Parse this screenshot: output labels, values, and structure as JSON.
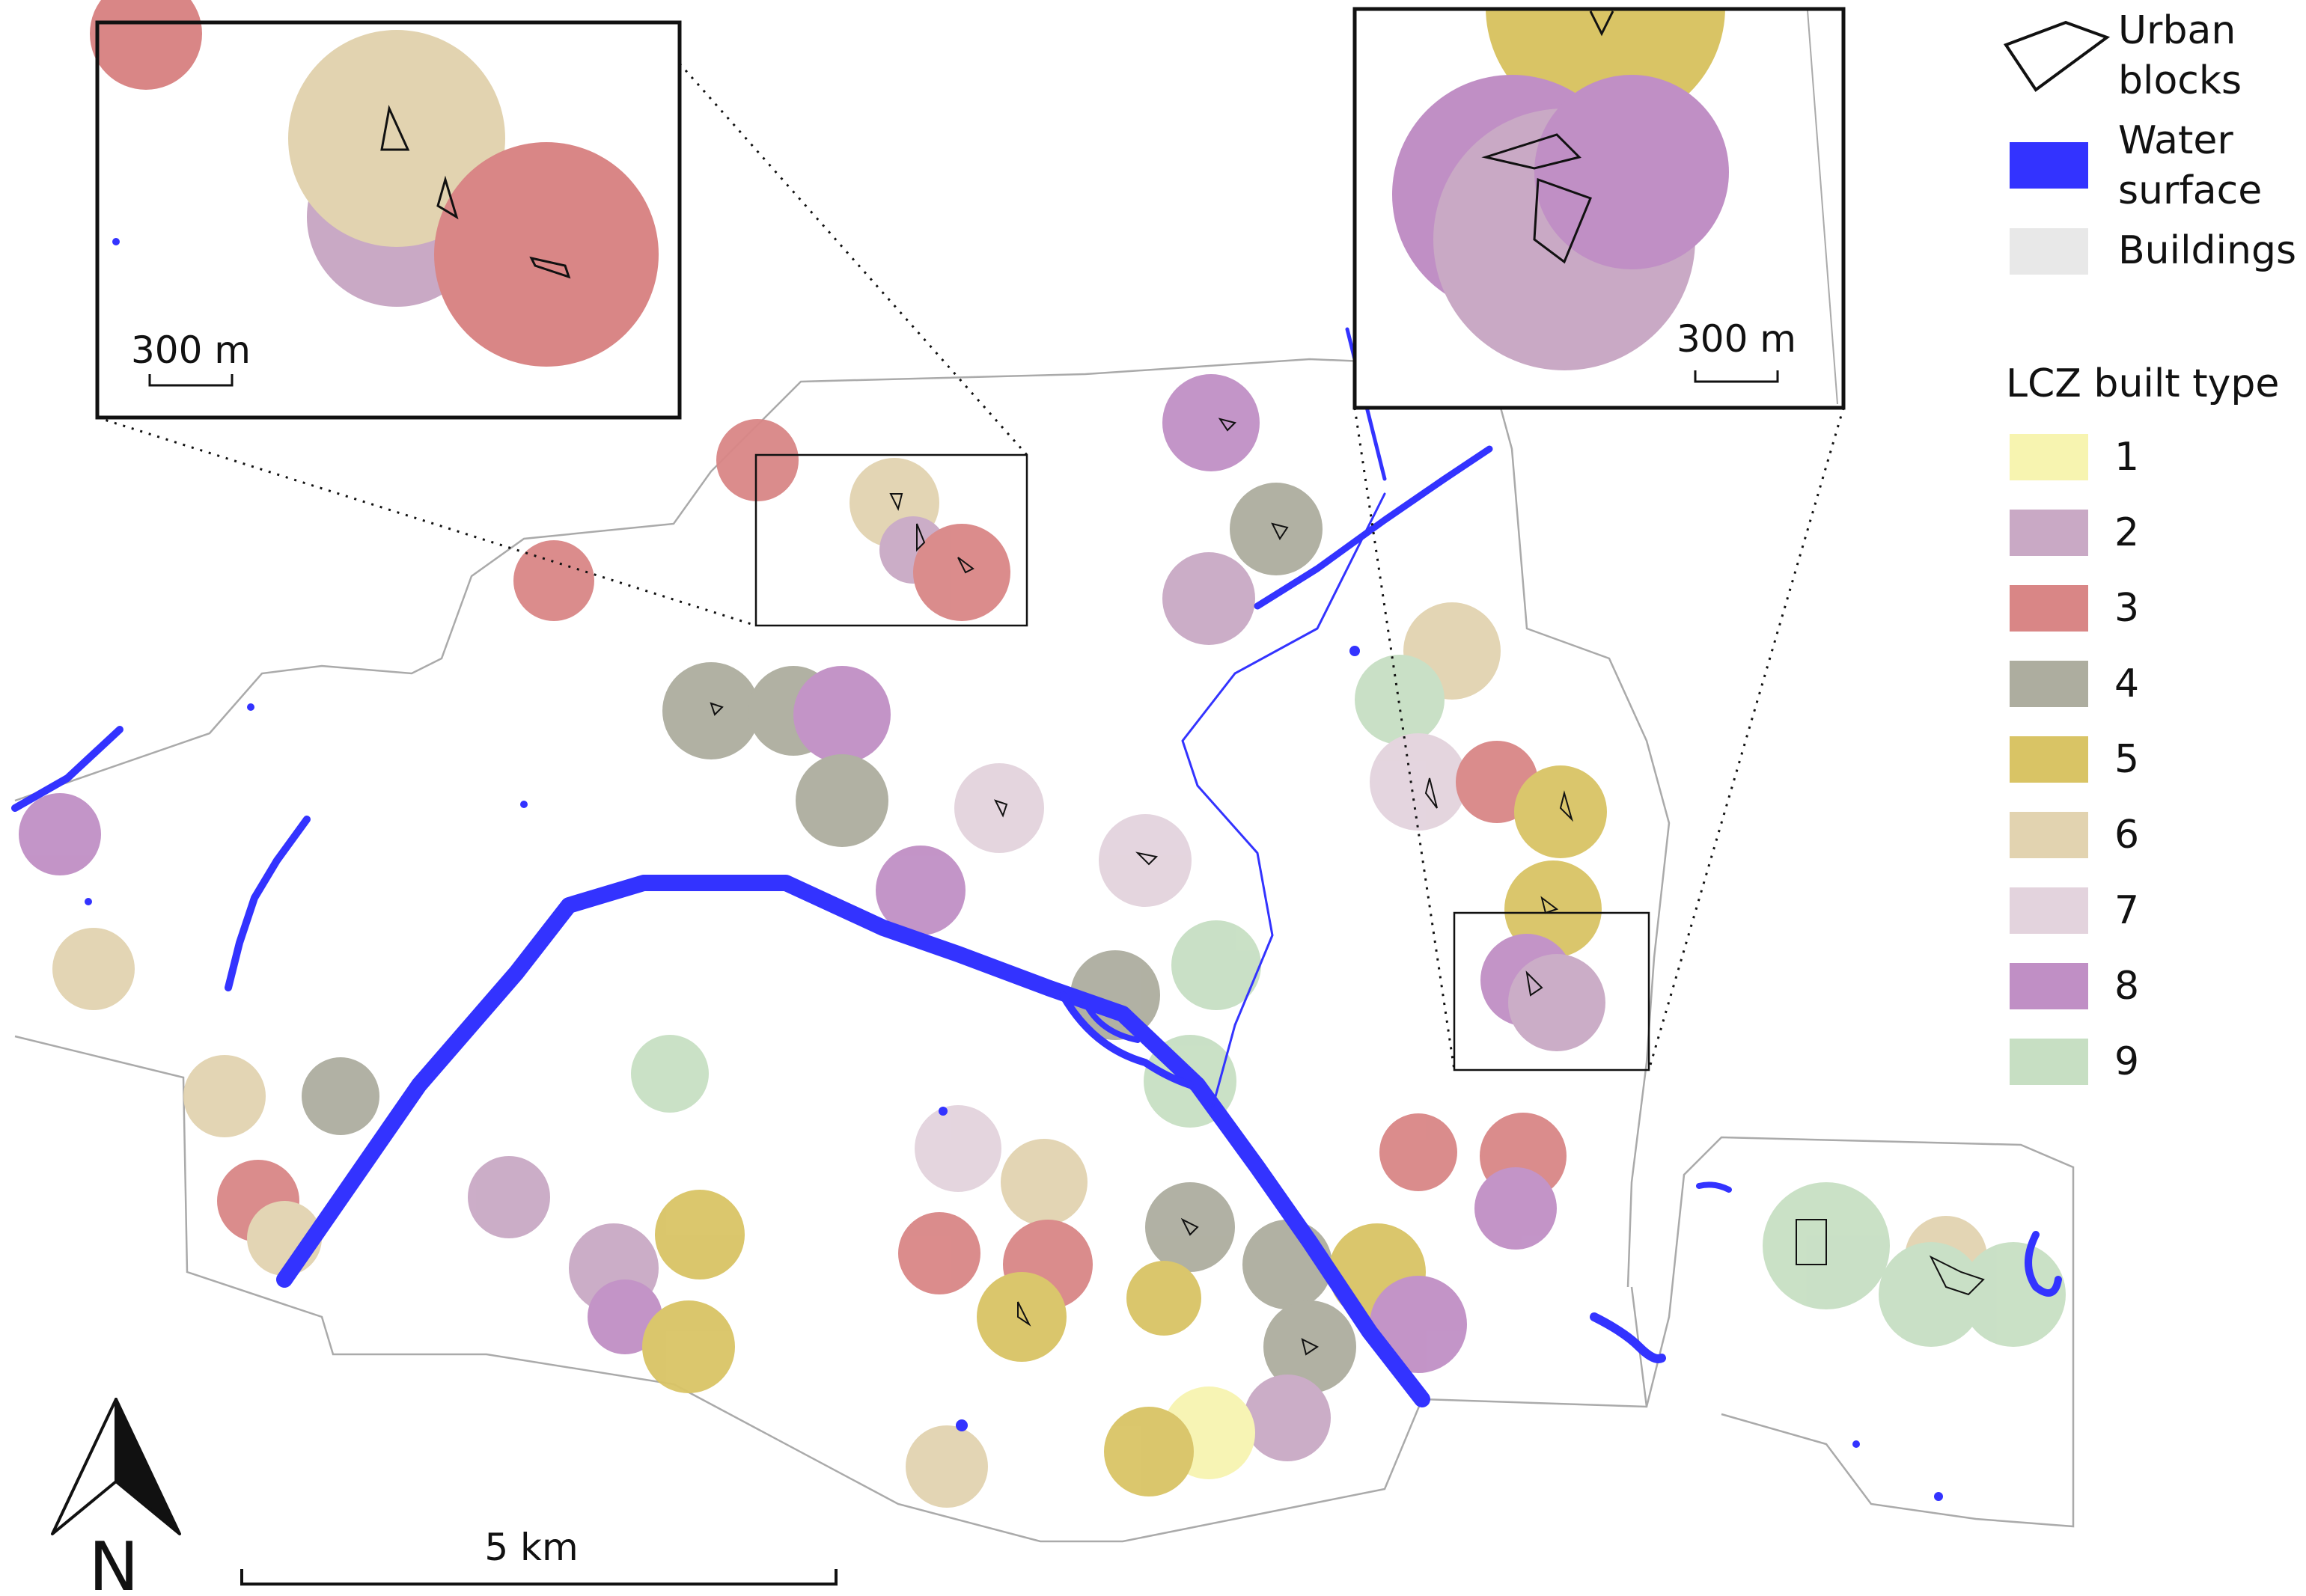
{
  "legend": {
    "urban_blocks_line1": "Urban",
    "urban_blocks_line2": "blocks",
    "water_line1": "Water",
    "water_line2": "surface",
    "buildings": "Buildings",
    "lcz_title": "LCZ built type",
    "lcz_classes": [
      {
        "label": "1",
        "color": "#f7f4b0"
      },
      {
        "label": "2",
        "color": "#c9a9c5"
      },
      {
        "label": "3",
        "color": "#d98686"
      },
      {
        "label": "4",
        "color": "#adad9f"
      },
      {
        "label": "5",
        "color": "#d9c465"
      },
      {
        "label": "6",
        "color": "#e2d3b0"
      },
      {
        "label": "7",
        "color": "#e3d3dd"
      },
      {
        "label": "8",
        "color": "#c08fc5"
      },
      {
        "label": "9",
        "color": "#c7dfc3"
      }
    ]
  },
  "colors": {
    "water": "#3333ff",
    "buildings": "#e8e8e8",
    "boundary": "#aaaaaa"
  },
  "scale_bars": {
    "main": "5 km",
    "inset_left": "300 m",
    "inset_right": "300 m"
  },
  "north_arrow": {
    "label": "N"
  }
}
